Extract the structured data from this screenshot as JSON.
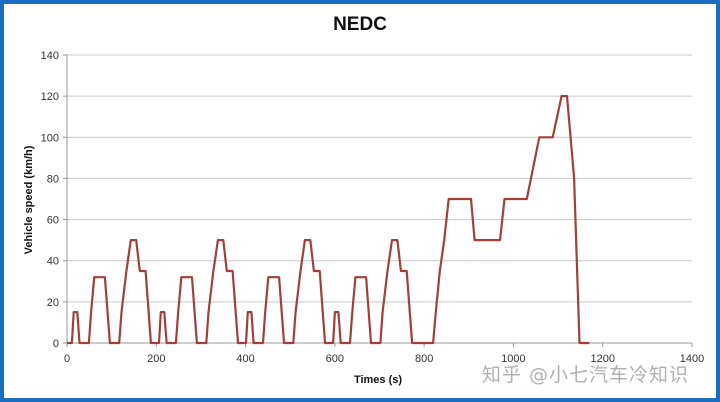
{
  "chart_data": {
    "type": "line",
    "title": "NEDC",
    "xlabel": "Times (s)",
    "ylabel": "Vehicle speed (km/h)",
    "xlim": [
      0,
      1400
    ],
    "ylim": [
      0,
      140
    ],
    "x_ticks": [
      0,
      200,
      400,
      600,
      800,
      1000,
      1200,
      1400
    ],
    "y_ticks": [
      0,
      20,
      40,
      60,
      80,
      100,
      120,
      140
    ],
    "grid": {
      "horizontal": true,
      "vertical": false
    },
    "legend": null,
    "line_color": "#a0403c",
    "series": [
      {
        "name": "Vehicle speed",
        "points": [
          [
            0,
            0
          ],
          [
            11,
            0
          ],
          [
            15,
            15
          ],
          [
            23,
            15
          ],
          [
            28,
            0
          ],
          [
            49,
            0
          ],
          [
            54,
            15
          ],
          [
            61,
            32
          ],
          [
            85,
            32
          ],
          [
            96,
            0
          ],
          [
            117,
            0
          ],
          [
            122,
            15
          ],
          [
            133,
            35
          ],
          [
            143,
            50
          ],
          [
            155,
            50
          ],
          [
            163,
            35
          ],
          [
            176,
            35
          ],
          [
            188,
            0
          ],
          [
            195,
            0
          ],
          [
            206,
            0
          ],
          [
            210,
            15
          ],
          [
            218,
            15
          ],
          [
            223,
            0
          ],
          [
            244,
            0
          ],
          [
            249,
            15
          ],
          [
            256,
            32
          ],
          [
            280,
            32
          ],
          [
            291,
            0
          ],
          [
            312,
            0
          ],
          [
            317,
            15
          ],
          [
            328,
            35
          ],
          [
            338,
            50
          ],
          [
            350,
            50
          ],
          [
            358,
            35
          ],
          [
            371,
            35
          ],
          [
            383,
            0
          ],
          [
            390,
            0
          ],
          [
            401,
            0
          ],
          [
            405,
            15
          ],
          [
            413,
            15
          ],
          [
            418,
            0
          ],
          [
            439,
            0
          ],
          [
            444,
            15
          ],
          [
            451,
            32
          ],
          [
            475,
            32
          ],
          [
            486,
            0
          ],
          [
            507,
            0
          ],
          [
            512,
            15
          ],
          [
            523,
            35
          ],
          [
            533,
            50
          ],
          [
            545,
            50
          ],
          [
            553,
            35
          ],
          [
            566,
            35
          ],
          [
            578,
            0
          ],
          [
            585,
            0
          ],
          [
            596,
            0
          ],
          [
            600,
            15
          ],
          [
            608,
            15
          ],
          [
            613,
            0
          ],
          [
            634,
            0
          ],
          [
            639,
            15
          ],
          [
            646,
            32
          ],
          [
            670,
            32
          ],
          [
            681,
            0
          ],
          [
            702,
            0
          ],
          [
            707,
            15
          ],
          [
            718,
            35
          ],
          [
            728,
            50
          ],
          [
            740,
            50
          ],
          [
            748,
            35
          ],
          [
            761,
            35
          ],
          [
            773,
            0
          ],
          [
            800,
            0
          ],
          [
            820,
            0
          ],
          [
            826,
            15
          ],
          [
            835,
            35
          ],
          [
            845,
            50
          ],
          [
            855,
            70
          ],
          [
            905,
            70
          ],
          [
            913,
            50
          ],
          [
            970,
            50
          ],
          [
            980,
            70
          ],
          [
            1030,
            70
          ],
          [
            1058,
            100
          ],
          [
            1088,
            100
          ],
          [
            1108,
            120
          ],
          [
            1120,
            120
          ],
          [
            1136,
            80
          ],
          [
            1148,
            0
          ],
          [
            1170,
            0
          ]
        ]
      }
    ]
  },
  "watermark": "知乎 @小七汽车冷知识"
}
